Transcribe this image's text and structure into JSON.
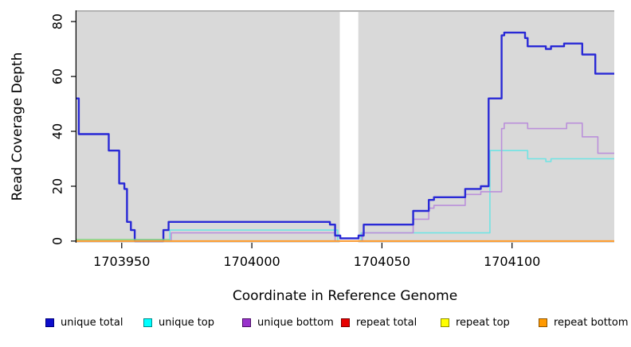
{
  "chart_data": {
    "type": "line",
    "subtype": "step",
    "title": "",
    "xlabel": "Coordinate in Reference Genome",
    "ylabel": "Read Coverage Depth",
    "xlim": [
      1703932.6,
      1704139.3
    ],
    "ylim": [
      -0.6,
      84.1
    ],
    "xticks": [
      1703950,
      1704000,
      1704050,
      1704100
    ],
    "yticks": [
      0,
      20,
      40,
      60,
      80
    ],
    "grid": false,
    "legend_position": "bottom",
    "panel_bg": "#d9d9d9",
    "panel_top_border": "#a3a3a3",
    "gap_region": {
      "x0": 1704033.8,
      "x1": 1704040.9
    },
    "zero_overlap": {
      "x0": 1703932.6,
      "x1": 1703968.5,
      "color": "#7cd87c"
    },
    "series": [
      {
        "name": "unique total",
        "color": "#2929d6",
        "width": 2.4,
        "points": [
          [
            1703932.6,
            52
          ],
          [
            1703933.5,
            39
          ],
          [
            1703945,
            33
          ],
          [
            1703949,
            21
          ],
          [
            1703951,
            19
          ],
          [
            1703952,
            7
          ],
          [
            1703953.5,
            4
          ],
          [
            1703955,
            0
          ],
          [
            1703966,
            4
          ],
          [
            1703968,
            7
          ],
          [
            1704030,
            6
          ],
          [
            1704032,
            2
          ],
          [
            1704034,
            1
          ],
          [
            1704041,
            2
          ],
          [
            1704043,
            6
          ],
          [
            1704062,
            11
          ],
          [
            1704068,
            15
          ],
          [
            1704070,
            16
          ],
          [
            1704082,
            19
          ],
          [
            1704088,
            20
          ],
          [
            1704091,
            52
          ],
          [
            1704096,
            75
          ],
          [
            1704097,
            76
          ],
          [
            1704105,
            74
          ],
          [
            1704106,
            71
          ],
          [
            1704113,
            70
          ],
          [
            1704115,
            71
          ],
          [
            1704120,
            72
          ],
          [
            1704127,
            68
          ],
          [
            1704132,
            61
          ]
        ]
      },
      {
        "name": "unique top",
        "color": "#70e4e4",
        "width": 1.6,
        "points": [
          [
            1703932.6,
            0
          ],
          [
            1703968.5,
            4
          ],
          [
            1704033,
            0
          ],
          [
            1704042,
            3
          ],
          [
            1704091.5,
            33
          ],
          [
            1704106,
            30
          ],
          [
            1704113,
            29
          ],
          [
            1704115,
            30
          ]
        ]
      },
      {
        "name": "unique bottom",
        "color": "#bb90da",
        "width": 1.6,
        "points": [
          [
            1703932.6,
            0
          ],
          [
            1703969,
            3
          ],
          [
            1704032,
            0
          ],
          [
            1704042.5,
            3
          ],
          [
            1704062,
            8
          ],
          [
            1704068,
            12
          ],
          [
            1704070,
            13
          ],
          [
            1704082,
            17
          ],
          [
            1704088,
            18
          ],
          [
            1704096,
            41
          ],
          [
            1704097,
            43
          ],
          [
            1704106,
            41
          ],
          [
            1704121,
            43
          ],
          [
            1704127,
            38
          ],
          [
            1704133,
            32
          ]
        ]
      },
      {
        "name": "repeat total",
        "color": "#e02020",
        "width": 1.5,
        "points": [
          [
            1703932.6,
            0
          ]
        ]
      },
      {
        "name": "repeat top",
        "color": "#f5f520",
        "width": 1.5,
        "points": [
          [
            1703932.6,
            0
          ]
        ]
      },
      {
        "name": "repeat bottom",
        "color": "#ff9d2e",
        "width": 2,
        "points": [
          [
            1703932.6,
            0
          ]
        ]
      }
    ],
    "legend": [
      {
        "label": "unique total",
        "fill": "#0d0dcc",
        "border": "#00007a"
      },
      {
        "label": "unique top",
        "fill": "#00ffff",
        "border": "#008b8b"
      },
      {
        "label": "unique bottom",
        "fill": "#9933cc",
        "border": "#4b0e66"
      },
      {
        "label": "repeat total",
        "fill": "#e60000",
        "border": "#7a0000"
      },
      {
        "label": "repeat top",
        "fill": "#ffff00",
        "border": "#8f8f00"
      },
      {
        "label": "repeat bottom",
        "fill": "#ff9900",
        "border": "#8f5500"
      }
    ]
  }
}
